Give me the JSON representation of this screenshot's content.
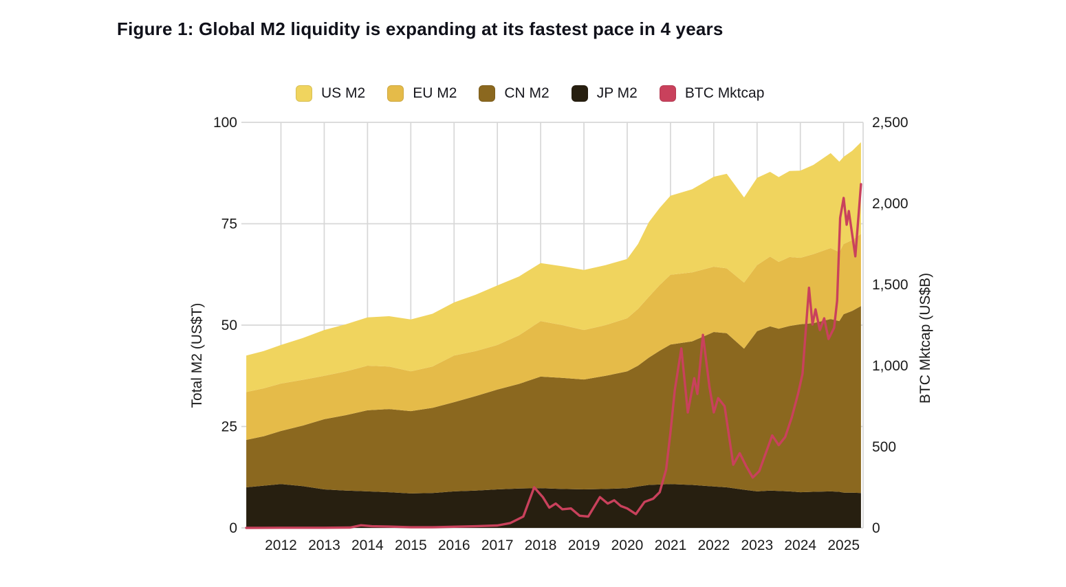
{
  "title": "Figure 1: Global M2 liquidity is expanding at its fastest pace in 4 years",
  "legend": {
    "items": [
      {
        "label": "US M2",
        "color": "#F0D45E"
      },
      {
        "label": "EU M2",
        "color": "#E5BB49"
      },
      {
        "label": "CN M2",
        "color": "#8B681F"
      },
      {
        "label": "JP M2",
        "color": "#271F10"
      },
      {
        "label": "BTC Mktcap",
        "color": "#C9415C"
      }
    ]
  },
  "chart_data": {
    "type": "area",
    "stacked": true,
    "title": "Figure 1: Global M2 liquidity is expanding at its fastest pace in 4 years",
    "legend_position": "top",
    "grid": true,
    "grid_color": "#D7D7D7",
    "x_years": [
      2011.2,
      2011.6,
      2012.0,
      2012.5,
      2013.0,
      2013.5,
      2014.0,
      2014.5,
      2015.0,
      2015.5,
      2016.0,
      2016.5,
      2017.0,
      2017.5,
      2018.0,
      2018.5,
      2019.0,
      2019.5,
      2020.0,
      2020.25,
      2020.5,
      2020.75,
      2021.0,
      2021.5,
      2022.0,
      2022.3,
      2022.7,
      2023.0,
      2023.3,
      2023.5,
      2023.75,
      2024.0,
      2024.3,
      2024.7,
      2024.9,
      2025.0,
      2025.2,
      2025.4
    ],
    "series": [
      {
        "name": "JP M2",
        "color": "#271F10",
        "unit": "US$T",
        "values": [
          10.0,
          10.4,
          10.8,
          10.3,
          9.5,
          9.2,
          9.0,
          8.8,
          8.5,
          8.6,
          9.0,
          9.2,
          9.5,
          9.7,
          9.8,
          9.6,
          9.5,
          9.6,
          9.8,
          10.2,
          10.6,
          10.7,
          10.8,
          10.6,
          10.2,
          10.0,
          9.4,
          9.0,
          9.2,
          9.1,
          9.0,
          8.8,
          8.9,
          9.0,
          8.9,
          8.7,
          8.7,
          8.6
        ]
      },
      {
        "name": "CN M2",
        "color": "#8B681F",
        "unit": "US$T",
        "values": [
          11.7,
          12.2,
          13.1,
          14.9,
          17.3,
          18.6,
          20.0,
          20.5,
          20.3,
          21.0,
          22.0,
          23.3,
          24.6,
          25.8,
          27.5,
          27.4,
          27.1,
          27.9,
          28.8,
          29.8,
          31.4,
          33.0,
          34.4,
          35.4,
          38.1,
          38.0,
          34.8,
          39.5,
          40.5,
          40.0,
          40.8,
          41.4,
          41.6,
          42.5,
          42.1,
          44.0,
          44.8,
          46.1
        ]
      },
      {
        "name": "EU M2",
        "color": "#E5BB49",
        "unit": "US$T",
        "values": [
          11.8,
          11.8,
          11.7,
          11.3,
          10.7,
          10.8,
          11.0,
          10.5,
          9.8,
          10.2,
          11.5,
          11.1,
          11.0,
          12.0,
          13.7,
          13.0,
          12.2,
          12.5,
          13.1,
          14.0,
          15.0,
          16.2,
          17.2,
          17.0,
          16.1,
          16.0,
          16.3,
          16.3,
          17.2,
          16.5,
          17.0,
          16.4,
          17.0,
          17.5,
          17.0,
          17.3,
          17.5,
          17.8
        ]
      },
      {
        "name": "US M2",
        "color": "#F0D45E",
        "unit": "US$T",
        "values": [
          9.0,
          9.2,
          9.5,
          10.3,
          11.3,
          11.6,
          11.9,
          12.4,
          12.8,
          13.0,
          13.1,
          13.9,
          14.7,
          14.5,
          14.3,
          14.5,
          14.8,
          14.8,
          14.6,
          16.0,
          18.4,
          19.0,
          19.5,
          20.5,
          22.2,
          23.3,
          21.0,
          21.5,
          20.9,
          20.9,
          21.2,
          21.5,
          22.0,
          23.4,
          22.3,
          21.5,
          22.0,
          22.6
        ]
      }
    ],
    "line_series": {
      "name": "BTC Mktcap",
      "color": "#C9415C",
      "unit": "US$B",
      "x": [
        2011.2,
        2012.0,
        2013.0,
        2013.6,
        2013.85,
        2014.1,
        2014.5,
        2015.0,
        2015.5,
        2016.0,
        2016.5,
        2017.0,
        2017.3,
        2017.6,
        2017.85,
        2018.05,
        2018.2,
        2018.35,
        2018.5,
        2018.7,
        2018.9,
        2019.1,
        2019.37,
        2019.55,
        2019.7,
        2019.85,
        2020.0,
        2020.2,
        2020.4,
        2020.6,
        2020.75,
        2020.9,
        2021.0,
        2021.1,
        2021.25,
        2021.4,
        2021.55,
        2021.62,
        2021.75,
        2021.9,
        2022.0,
        2022.1,
        2022.25,
        2022.45,
        2022.6,
        2022.75,
        2022.9,
        2023.05,
        2023.2,
        2023.35,
        2023.5,
        2023.65,
        2023.8,
        2023.95,
        2024.05,
        2024.12,
        2024.2,
        2024.28,
        2024.35,
        2024.45,
        2024.55,
        2024.65,
        2024.78,
        2024.85,
        2024.92,
        2025.0,
        2025.07,
        2025.12,
        2025.27,
        2025.4
      ],
      "values": [
        0,
        1,
        1,
        2,
        16,
        10,
        8,
        4,
        4,
        7,
        10,
        15,
        30,
        70,
        250,
        190,
        125,
        150,
        115,
        120,
        75,
        70,
        190,
        150,
        170,
        135,
        120,
        85,
        160,
        180,
        220,
        360,
        590,
        850,
        1106,
        712,
        923,
        826,
        1190,
        868,
        712,
        800,
        750,
        390,
        460,
        380,
        310,
        350,
        460,
        570,
        510,
        560,
        680,
        830,
        950,
        1200,
        1480,
        1254,
        1347,
        1220,
        1292,
        1165,
        1233,
        1400,
        1911,
        2034,
        1869,
        1953,
        1674,
        2119
      ]
    },
    "left_axis": {
      "title": "Total M2 (US$T)",
      "range": [
        0,
        100
      ],
      "ticks": [
        0,
        25,
        50,
        75,
        100
      ],
      "tick_labels": [
        "0",
        "25",
        "50",
        "75",
        "100"
      ]
    },
    "right_axis": {
      "title": "BTC Mktcap (US$B)",
      "range": [
        0,
        2500
      ],
      "ticks": [
        0,
        500,
        1000,
        1500,
        2000,
        2500
      ],
      "tick_labels": [
        "0",
        "500",
        "1,000",
        "1,500",
        "2,000",
        "2,500"
      ]
    },
    "x_axis": {
      "range": [
        2011.15,
        2025.45
      ],
      "tick_years": [
        2012,
        2013,
        2014,
        2015,
        2016,
        2017,
        2018,
        2019,
        2020,
        2021,
        2022,
        2023,
        2024,
        2025
      ],
      "labels": [
        "2012",
        "2013",
        "2014",
        "2015",
        "2016",
        "2017",
        "2018",
        "2019",
        "2020",
        "2021",
        "2022",
        "2023",
        "2024",
        "2025"
      ]
    }
  }
}
